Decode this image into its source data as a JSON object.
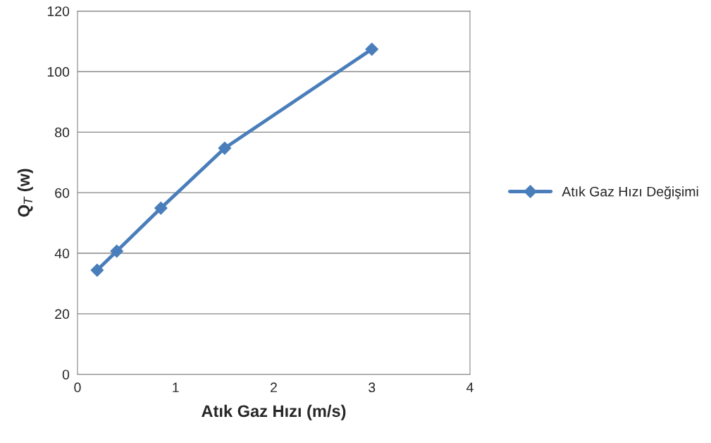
{
  "chart_data": {
    "type": "line",
    "xlabel": "Atık Gaz Hızı (m/s)",
    "ylabel": "Q$_{T}$ (w)",
    "x": [
      0.2,
      0.4,
      0.85,
      1.5,
      3.0
    ],
    "series": [
      {
        "name": "Atık Gaz Hızı Değişimi",
        "color": "#4a7ebb",
        "values": [
          34.4,
          40.7,
          54.9,
          74.7,
          107.4
        ]
      }
    ],
    "xlim": [
      0,
      4
    ],
    "xticks": [
      0,
      1,
      2,
      3,
      4
    ],
    "ylim": [
      0,
      120
    ],
    "yticks": [
      0,
      20,
      40,
      60,
      80,
      100,
      120
    ],
    "grid": "y",
    "legend": "right",
    "marker": "diamond",
    "line_style": "solid"
  }
}
